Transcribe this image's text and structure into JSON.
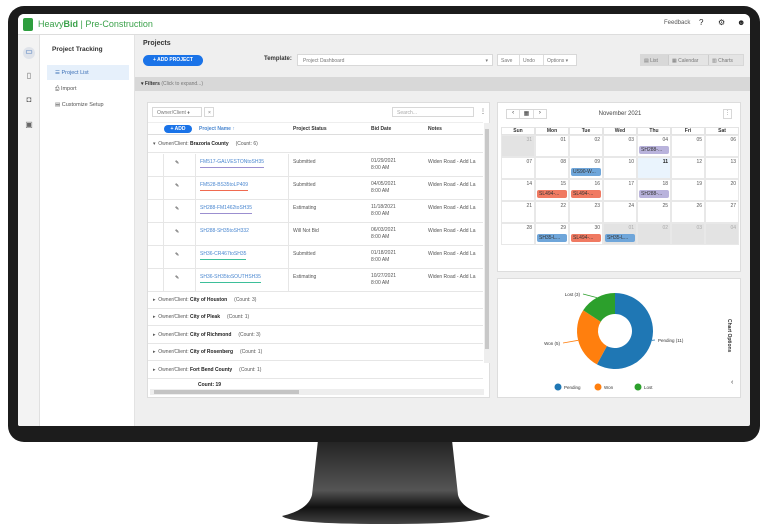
{
  "app": {
    "brand_a": "Heavy",
    "brand_b": "Bid",
    "brand_c": " | Pre-Construction",
    "feedback": "Feedback"
  },
  "nav": {
    "title": "Project Tracking",
    "items": [
      {
        "label": "Project List",
        "icon": "list-icon"
      },
      {
        "label": "Import",
        "icon": "import-icon"
      },
      {
        "label": "Customize Setup",
        "icon": "setup-icon"
      }
    ]
  },
  "page": {
    "title": "Projects",
    "add_project": "+ ADD PROJECT",
    "template_label": "Template:",
    "template_value": "Project Dashboard",
    "save": "Save",
    "undo": "Undo",
    "options": "Options ▾",
    "views": [
      "List",
      "Calendar",
      "Charts"
    ],
    "filters": "Filters",
    "filters_hint": "(Click to expand...)"
  },
  "grid": {
    "group_chip": "Owner/Client ♦",
    "chip_close": "×",
    "search_placeholder": "Search...",
    "add": "+ ADD",
    "columns": [
      "Project Name ↑",
      "Project Status",
      "Bid Date",
      "Notes"
    ],
    "group_prefix": "Owner/Client: ",
    "groups": [
      {
        "name": "Brazoria County",
        "count": "(Count: 6)"
      },
      {
        "name": "City of Houston",
        "count": "(Count: 3)"
      },
      {
        "name": "City of Pleak",
        "count": "(Count: 1)"
      },
      {
        "name": "City of Richmond",
        "count": "(Count: 3)"
      },
      {
        "name": "City of Rosenberg",
        "count": "(Count: 1)"
      },
      {
        "name": "Fort Bend County",
        "count": "(Count: 1)"
      }
    ],
    "rows": [
      {
        "name": "FM517-GALVESTONtoSH35",
        "status": "Submitted",
        "date": "01/29/2021",
        "time": "8:00 AM",
        "notes": "Widen Road - Add La",
        "underline": "#9b8fd0"
      },
      {
        "name": "FM528-BS35toLP409",
        "status": "Submitted",
        "date": "04/05/2021",
        "time": "8:00 AM",
        "notes": "Widen Road - Add La",
        "underline": "#f06a50"
      },
      {
        "name": "SH288-FM1462toSH35",
        "status": "Estimating",
        "date": "11/18/2021",
        "time": "8:00 AM",
        "notes": "Widen Road - Add La",
        "underline": "#9b8fd0"
      },
      {
        "name": "SH288-SH35toSH332",
        "status": "Will Not Bid",
        "date": "06/03/2021",
        "time": "8:00 AM",
        "notes": "Widen Road - Add La",
        "underline": ""
      },
      {
        "name": "SH36-CR467toSH35",
        "status": "Submitted",
        "date": "01/18/2021",
        "time": "8:00 AM",
        "notes": "Widen Road - Add La",
        "underline": "#3dbf9a"
      },
      {
        "name": "SH36-SH35toSOUTHSH35",
        "status": "Estimating",
        "date": "10/27/2021",
        "time": "8:00 AM",
        "notes": "Widen Road - Add La",
        "underline": "#3dbf9a"
      }
    ],
    "total": "Count: 19"
  },
  "calendar": {
    "title": "November 2021",
    "days": [
      "Sun",
      "Mon",
      "Tue",
      "Wed",
      "Thu",
      "Fri",
      "Sat"
    ],
    "weeks": [
      [
        "31",
        "01",
        "02",
        "03",
        "04",
        "05",
        "06"
      ],
      [
        "07",
        "08",
        "09",
        "10",
        "11",
        "12",
        "13"
      ],
      [
        "14",
        "15",
        "16",
        "17",
        "18",
        "19",
        "20"
      ],
      [
        "21",
        "22",
        "23",
        "24",
        "25",
        "26",
        "27"
      ],
      [
        "28",
        "29",
        "30",
        "01",
        "02",
        "03",
        "04"
      ]
    ],
    "events": [
      {
        "week": 0,
        "day": 4,
        "label": "SH288-...",
        "color": "#b9b3dc"
      },
      {
        "week": 1,
        "day": 2,
        "label": "US90-W...",
        "color": "#6fa6da"
      },
      {
        "week": 2,
        "day": 1,
        "label": "SL494-...",
        "color": "#f07a62"
      },
      {
        "week": 2,
        "day": 2,
        "label": "SL494-...",
        "color": "#f07a62"
      },
      {
        "week": 2,
        "day": 4,
        "label": "SH288-...",
        "color": "#b9b3dc"
      },
      {
        "week": 4,
        "day": 1,
        "label": "SH35-L...",
        "color": "#6fa6da"
      },
      {
        "week": 4,
        "day": 2,
        "label": "SL494-...",
        "color": "#f07a62"
      },
      {
        "week": 4,
        "day": 3,
        "label": "SH35-L...",
        "color": "#6fa6da"
      }
    ]
  },
  "chart_data": {
    "type": "pie",
    "donut": true,
    "side_label": "Chart Options",
    "legend_position": "bottom",
    "series": [
      {
        "name": "Pending",
        "value": 11,
        "label": "Pending (11)",
        "color": "#1f77b4"
      },
      {
        "name": "Won",
        "value": 5,
        "label": "Won (5)",
        "color": "#ff7f0e"
      },
      {
        "name": "Lost",
        "value": 3,
        "label": "Lost (3)",
        "color": "#2ca02c"
      }
    ]
  }
}
